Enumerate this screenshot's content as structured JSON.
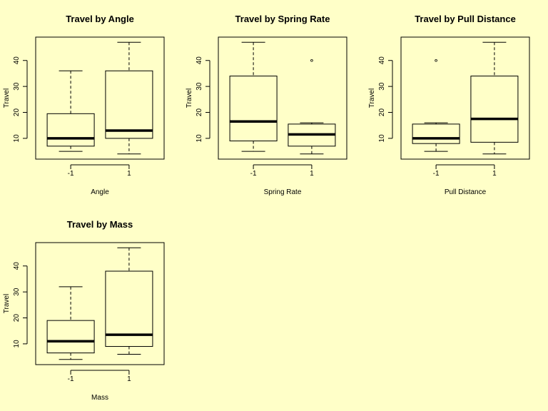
{
  "background_color": "#ffffc8",
  "chart_data": [
    {
      "type": "box",
      "title": "Travel by Angle",
      "xlabel": "Angle",
      "ylabel": "Travel",
      "categories": [
        "-1",
        "1"
      ],
      "yticks": [
        10,
        20,
        30,
        40
      ],
      "ylim": [
        2,
        49
      ],
      "boxes": [
        {
          "category": "-1",
          "whisker_low": 5,
          "q1": 7,
          "median": 10,
          "q3": 19.5,
          "whisker_high": 36,
          "outliers": []
        },
        {
          "category": "1",
          "whisker_low": 4,
          "q1": 10,
          "median": 13,
          "q3": 36,
          "whisker_high": 47,
          "outliers": []
        }
      ]
    },
    {
      "type": "box",
      "title": "Travel by Spring Rate",
      "xlabel": "Spring Rate",
      "ylabel": "Travel",
      "categories": [
        "-1",
        "1"
      ],
      "yticks": [
        10,
        20,
        30,
        40
      ],
      "ylim": [
        2,
        49
      ],
      "boxes": [
        {
          "category": "-1",
          "whisker_low": 5,
          "q1": 9,
          "median": 16.5,
          "q3": 34,
          "whisker_high": 47,
          "outliers": []
        },
        {
          "category": "1",
          "whisker_low": 4,
          "q1": 7,
          "median": 11.5,
          "q3": 15.5,
          "whisker_high": 16,
          "outliers": [
            40
          ]
        }
      ]
    },
    {
      "type": "box",
      "title": "Travel by Pull Distance",
      "xlabel": "Pull Distance",
      "ylabel": "Travel",
      "categories": [
        "-1",
        "1"
      ],
      "yticks": [
        10,
        20,
        30,
        40
      ],
      "ylim": [
        2,
        49
      ],
      "boxes": [
        {
          "category": "-1",
          "whisker_low": 5,
          "q1": 8,
          "median": 10,
          "q3": 15.5,
          "whisker_high": 16,
          "outliers": [
            40
          ]
        },
        {
          "category": "1",
          "whisker_low": 4,
          "q1": 8.5,
          "median": 17.5,
          "q3": 34,
          "whisker_high": 47,
          "outliers": []
        }
      ]
    },
    {
      "type": "box",
      "title": "Travel by Mass",
      "xlabel": "Mass",
      "ylabel": "Travel",
      "categories": [
        "-1",
        "1"
      ],
      "yticks": [
        10,
        20,
        30,
        40
      ],
      "ylim": [
        2,
        49
      ],
      "boxes": [
        {
          "category": "-1",
          "whisker_low": 4,
          "q1": 6.5,
          "median": 11,
          "q3": 19,
          "whisker_high": 32,
          "outliers": []
        },
        {
          "category": "1",
          "whisker_low": 6,
          "q1": 9,
          "median": 13.5,
          "q3": 38,
          "whisker_high": 47,
          "outliers": []
        }
      ]
    }
  ]
}
